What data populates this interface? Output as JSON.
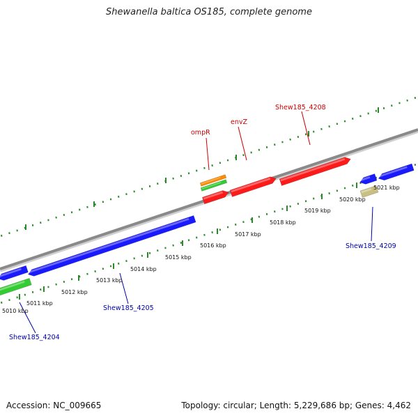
{
  "title": "Shewanella baltica OS185, complete genome",
  "footer": {
    "accession": "Accession: NC_009665",
    "summary": "Topology: circular; Length: 5,229,686 bp; Genes: 4,462"
  },
  "colors": {
    "backbone": "#8a8a8a",
    "ticks": "#2a8a2a",
    "forward_gene": "#ff1a1a",
    "reverse_gene": "#1a1aff",
    "label_forward": "#cc0000",
    "label_reverse": "#0000aa",
    "orange_feature": "#ff8c00",
    "green_feature": "#33cc33",
    "khaki_feature": "#c8bf80"
  },
  "ticks": [
    {
      "label": "5010 kbp",
      "major": true
    },
    {
      "label": "5011 kbp",
      "major": true
    },
    {
      "label": "5012 kbp",
      "major": true
    },
    {
      "label": "5013 kbp",
      "major": true
    },
    {
      "label": "5014 kbp",
      "major": true
    },
    {
      "label": "5015 kbp",
      "major": true
    },
    {
      "label": "5016 kbp",
      "major": true
    },
    {
      "label": "5017 kbp",
      "major": true
    },
    {
      "label": "5018 kbp",
      "major": true
    },
    {
      "label": "5019 kbp",
      "major": true
    },
    {
      "label": "5020 kbp",
      "major": true
    },
    {
      "label": "5021 kbp",
      "major": true
    }
  ],
  "gene_labels": [
    {
      "text": "ompR",
      "strand": "forward"
    },
    {
      "text": "envZ",
      "strand": "forward"
    },
    {
      "text": "Shew185_4208",
      "strand": "forward"
    },
    {
      "text": "Shew185_4209",
      "strand": "reverse"
    },
    {
      "text": "Shew185_4205",
      "strand": "reverse"
    },
    {
      "text": "Shew185_4204",
      "strand": "reverse"
    }
  ]
}
